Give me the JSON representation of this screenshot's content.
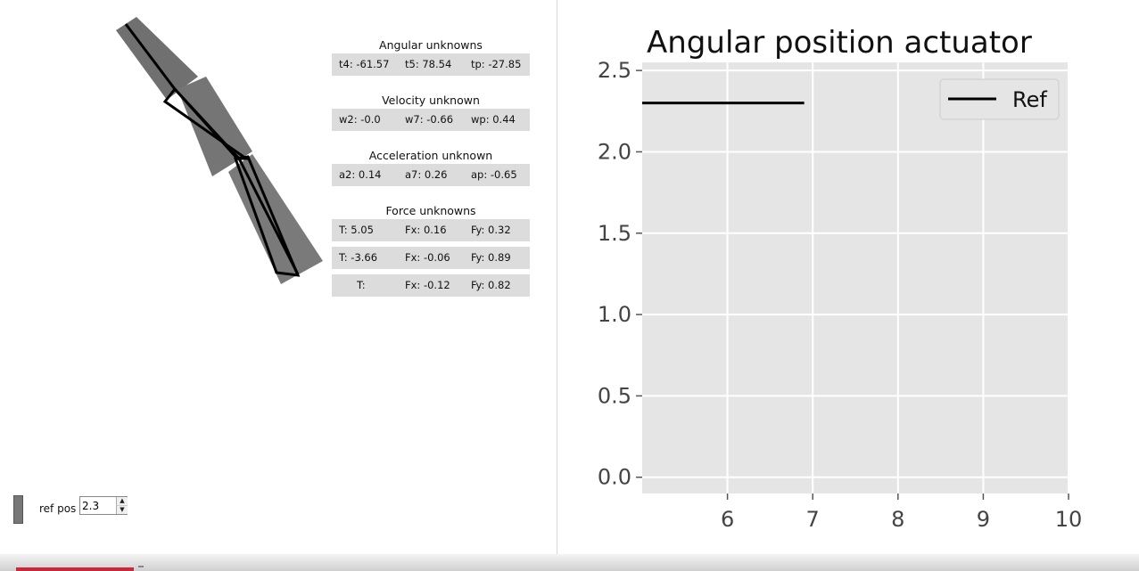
{
  "panels": {
    "angular": {
      "title": "Angular unknowns",
      "rows": [
        [
          "t4: -61.57",
          "t5: 78.54",
          "tp: -27.85"
        ]
      ]
    },
    "velocity": {
      "title": "Velocity unknown",
      "rows": [
        [
          "w2: -0.0",
          "w7: -0.66",
          "wp: 0.44"
        ]
      ]
    },
    "acceleration": {
      "title": "Acceleration unknown",
      "rows": [
        [
          "a2: 0.14",
          "a7: 0.26",
          "ap: -0.65"
        ]
      ]
    },
    "force": {
      "title": "Force unknowns",
      "rows": [
        [
          "T: 5.05",
          "Fx: 0.16",
          "Fy: 0.32"
        ],
        [
          "T: -3.66",
          "Fx: -0.06",
          "Fy: 0.89"
        ],
        [
          "T:",
          "Fx: -0.12",
          "Fy: 0.82"
        ]
      ]
    }
  },
  "ref_control": {
    "label": "ref pos",
    "value": "2.3",
    "up_icon": "triangle-up-icon",
    "down_icon": "triangle-down-icon"
  },
  "mechanism": {
    "link_color": "#6f6f6f",
    "outline_color": "#000000"
  },
  "chart_data": {
    "type": "line",
    "title": "Angular position actuator",
    "xlabel": "",
    "ylabel": "",
    "xlim": [
      5,
      10
    ],
    "ylim": [
      -0.1,
      2.55
    ],
    "xticks": [
      6,
      7,
      8,
      9,
      10
    ],
    "yticks": [
      0.0,
      0.5,
      1.0,
      1.5,
      2.0,
      2.5
    ],
    "xtick_labels": [
      "6",
      "7",
      "8",
      "9",
      "10"
    ],
    "ytick_labels": [
      "0.0",
      "0.5",
      "1.0",
      "1.5",
      "2.0",
      "2.5"
    ],
    "grid": true,
    "legend_position": "top-right",
    "plot_background": "#e5e5e5",
    "series": [
      {
        "name": "Ref",
        "color": "#000000",
        "x": [
          5.0,
          6.9
        ],
        "y": [
          2.3,
          2.3
        ]
      }
    ]
  }
}
